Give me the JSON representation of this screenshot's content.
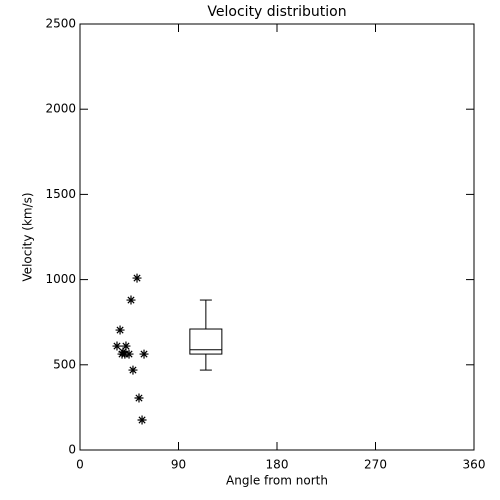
{
  "chart_data": {
    "type": "scatter",
    "title": "Velocity distribution",
    "x_label": "Angle from north",
    "y_label": "Velocity (km/s)",
    "xlim": [
      0,
      360
    ],
    "xticks": [
      0,
      90,
      180,
      270,
      360
    ],
    "ylim": [
      0,
      2500
    ],
    "yticks": [
      0,
      500,
      1000,
      1500,
      2000,
      2500
    ],
    "color": "#000000",
    "marker": "asterisk",
    "x": [
      36.6,
      33.8,
      39.3,
      42,
      38.4,
      41,
      44.8,
      46.6,
      52.1,
      48.4,
      53.9,
      58.5,
      56.7
    ],
    "values": [
      704,
      610,
      575,
      610,
      563,
      563,
      563,
      880,
      1009,
      469,
      305,
      563,
      176
    ],
    "boxes": [
      {
        "x": 115,
        "min": 469,
        "q1": 563,
        "median": 588,
        "q3": 710,
        "max": 880
      }
    ]
  }
}
